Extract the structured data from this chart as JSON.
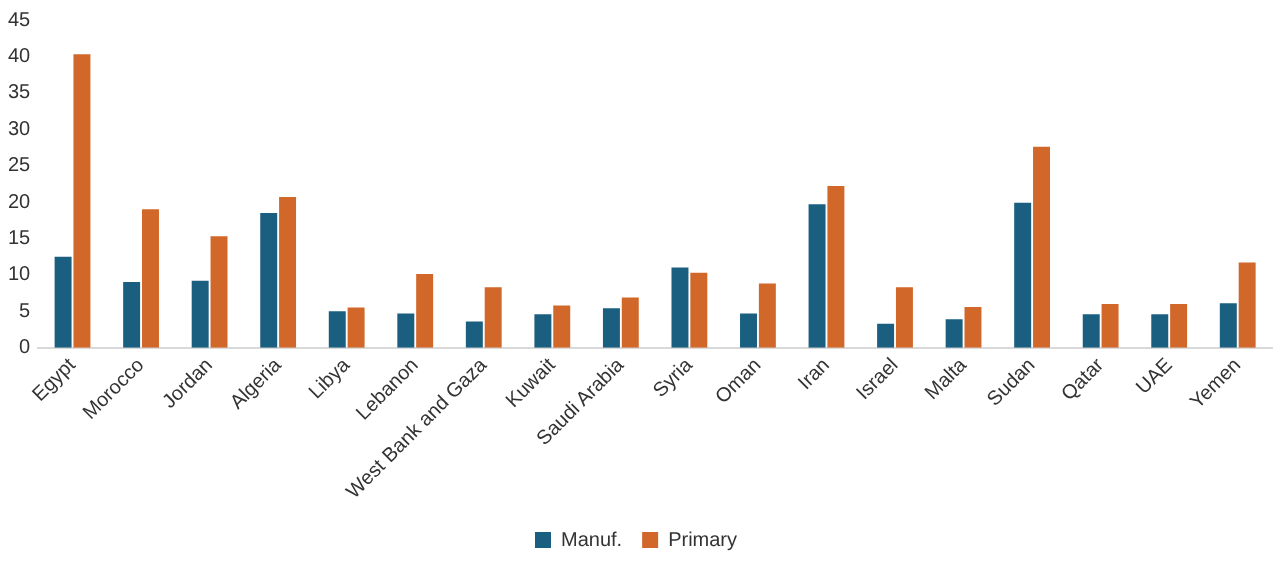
{
  "chart_data": {
    "type": "bar",
    "categories": [
      "Egypt",
      "Morocco",
      "Jordan",
      "Algeria",
      "Libya",
      "Lebanon",
      "West Bank and Gaza",
      "Kuwait",
      "Saudi Arabia",
      "Syria",
      "Oman",
      "Iran",
      "Israel",
      "Malta",
      "Sudan",
      "Qatar",
      "UAE",
      "Yemen"
    ],
    "series": [
      {
        "name": "Manuf.",
        "color": "#1a5e80",
        "values": [
          12.5,
          9,
          9.2,
          18.5,
          5,
          4.7,
          3.6,
          4.6,
          5.4,
          11,
          4.7,
          19.7,
          3.3,
          3.9,
          19.9,
          4.6,
          4.6,
          6.1
        ]
      },
      {
        "name": "Primary",
        "color": "#d2672a",
        "values": [
          40.3,
          19,
          15.3,
          20.7,
          5.5,
          10.1,
          8.3,
          5.8,
          6.9,
          10.3,
          8.8,
          22.2,
          8.3,
          5.6,
          27.6,
          6,
          6,
          11.7
        ]
      }
    ],
    "ylim": [
      0,
      45
    ],
    "yticks": [
      0,
      5,
      10,
      15,
      20,
      25,
      30,
      35,
      40,
      45
    ],
    "grid": false,
    "legend": "bottom"
  }
}
